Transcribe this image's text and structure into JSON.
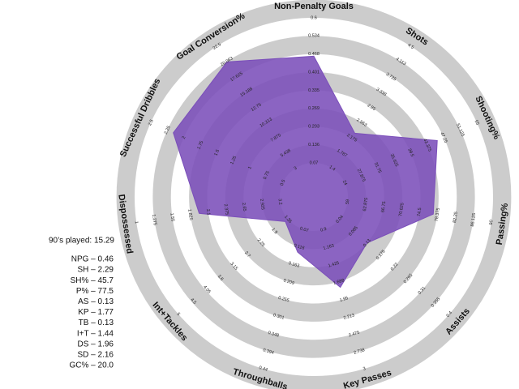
{
  "chart_data": {
    "type": "radar",
    "categories": [
      "Non-Penalty Goals",
      "Shots",
      "Shooting%",
      "Passing%",
      "Assists",
      "Key Passes",
      "Throughballs",
      "Int+Tackles",
      "Dispossessed",
      "Successful Dribbles",
      "Goal Conversion%"
    ],
    "values": [
      0.46,
      2.29,
      45.7,
      77.5,
      0.13,
      1.77,
      0.13,
      1.44,
      1.96,
      2.16,
      20.0
    ],
    "color": "#7b4fba",
    "ring_color": "#cccccc",
    "rlims": [
      [
        0.07,
        0.6
      ],
      [
        1.4,
        4.5
      ],
      [
        24,
        55
      ],
      [
        59,
        90
      ],
      [
        0.04,
        0.4
      ],
      [
        0.9,
        3
      ],
      [
        0.07,
        0.44
      ],
      [
        1.35,
        5
      ],
      [
        3.2,
        1
      ],
      [
        0.5,
        2.5
      ],
      [
        3,
        22.5
      ]
    ],
    "rticks": [
      [
        0.07,
        0.136,
        0.203,
        0.269,
        0.335,
        0.401,
        0.468,
        0.534,
        0.6
      ],
      [
        1.4,
        1.787,
        2.175,
        2.563,
        2.95,
        3.338,
        3.725,
        4.113,
        4.5
      ],
      [
        24,
        27.875,
        31.75,
        35.625,
        39.5,
        43.375,
        47.25,
        51.125,
        55
      ],
      [
        59,
        62.875,
        66.75,
        70.625,
        74.5,
        78.375,
        82.25,
        86.125,
        90
      ],
      [
        0.04,
        0.085,
        0.13,
        0.175,
        0.22,
        0.265,
        0.31,
        0.355,
        0.4
      ],
      [
        0.9,
        1.163,
        1.425,
        1.688,
        1.95,
        2.213,
        2.475,
        2.738,
        3
      ],
      [
        0.07,
        0.116,
        0.163,
        0.209,
        0.255,
        0.301,
        0.348,
        0.394,
        0.44
      ],
      [
        1.35,
        1.8,
        2.25,
        2.7,
        3.15,
        3.6,
        4.05,
        4.5,
        5
      ],
      [
        3.2,
        2.925,
        2.65,
        2.375,
        2.1,
        1.825,
        1.55,
        1.275,
        1
      ],
      [
        0.5,
        0.75,
        1,
        1.25,
        1.5,
        1.75,
        2,
        2.25,
        2.5
      ],
      [
        3,
        5.438,
        7.875,
        10.313,
        12.75,
        15.188,
        17.625,
        20.063,
        22.5
      ]
    ],
    "annotation": "90’s played: 15.29",
    "stat_lines": [
      "NPG – 0.46",
      "SH – 2.29",
      "SH% – 45.7",
      "P% – 77.5",
      "AS – 0.13",
      "KP – 1.77",
      "TB – 0.13",
      "I+T – 1.44",
      "DS – 1.96",
      "SD – 2.16",
      "GC% – 20.0"
    ]
  }
}
